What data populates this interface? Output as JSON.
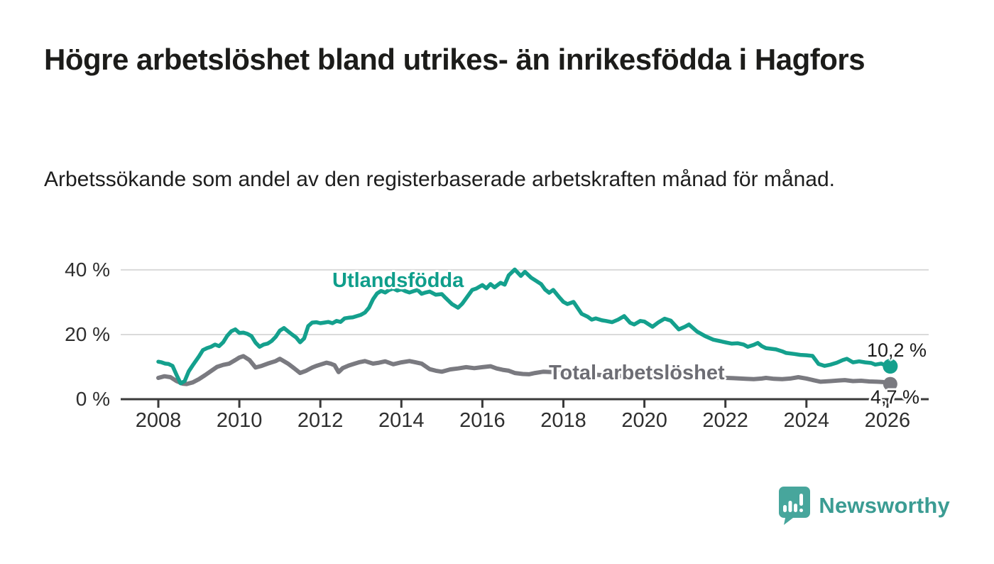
{
  "header": {
    "title": "Högre arbetslöshet bland utrikes- än inrikesfödda i Hagfors",
    "subtitle": "Arbetssökande som andel av den registerbaserade arbetskraften månad för månad."
  },
  "chart_data": {
    "type": "line",
    "title": "Högre arbetslöshet bland utrikes- än inrikesfödda i Hagfors",
    "xlabel": "",
    "ylabel": "",
    "unit": "%",
    "grid": "horizontal-only",
    "xlim": [
      2007.9,
      2027.0
    ],
    "ylim": [
      0,
      44
    ],
    "x_ticks": [
      "2008",
      "2010",
      "2012",
      "2014",
      "2016",
      "2018",
      "2020",
      "2022",
      "2024",
      "2026"
    ],
    "y_ticks": [
      {
        "value": 0,
        "label": "0 %"
      },
      {
        "value": 20,
        "label": "20 %"
      },
      {
        "value": 40,
        "label": "40 %"
      }
    ],
    "series": [
      {
        "name": "Total arbetslöshet",
        "color": "#7a7a80",
        "end_label": "4,7 %",
        "end_value": 4.7,
        "points": [
          [
            2008.0,
            6.6
          ],
          [
            2008.15,
            7.1
          ],
          [
            2008.3,
            6.8
          ],
          [
            2008.45,
            5.6
          ],
          [
            2008.6,
            4.8
          ],
          [
            2008.7,
            4.7
          ],
          [
            2008.85,
            5.2
          ],
          [
            2009.0,
            6.2
          ],
          [
            2009.15,
            7.4
          ],
          [
            2009.3,
            8.7
          ],
          [
            2009.45,
            10.0
          ],
          [
            2009.6,
            10.6
          ],
          [
            2009.75,
            11.0
          ],
          [
            2009.9,
            12.1
          ],
          [
            2010.0,
            12.9
          ],
          [
            2010.1,
            13.3
          ],
          [
            2010.25,
            12.1
          ],
          [
            2010.4,
            9.8
          ],
          [
            2010.55,
            10.3
          ],
          [
            2010.7,
            11.0
          ],
          [
            2010.9,
            11.8
          ],
          [
            2011.0,
            12.5
          ],
          [
            2011.2,
            11.0
          ],
          [
            2011.35,
            9.6
          ],
          [
            2011.5,
            8.1
          ],
          [
            2011.65,
            8.8
          ],
          [
            2011.8,
            9.8
          ],
          [
            2011.9,
            10.3
          ],
          [
            2012.0,
            10.7
          ],
          [
            2012.15,
            11.3
          ],
          [
            2012.25,
            11.0
          ],
          [
            2012.35,
            10.5
          ],
          [
            2012.45,
            8.4
          ],
          [
            2012.55,
            9.6
          ],
          [
            2012.7,
            10.4
          ],
          [
            2012.85,
            11.0
          ],
          [
            2012.95,
            11.4
          ],
          [
            2013.1,
            11.8
          ],
          [
            2013.3,
            11.0
          ],
          [
            2013.45,
            11.3
          ],
          [
            2013.6,
            11.7
          ],
          [
            2013.8,
            10.8
          ],
          [
            2014.0,
            11.4
          ],
          [
            2014.2,
            11.8
          ],
          [
            2014.35,
            11.4
          ],
          [
            2014.5,
            11.0
          ],
          [
            2014.7,
            9.3
          ],
          [
            2014.85,
            8.8
          ],
          [
            2015.0,
            8.5
          ],
          [
            2015.2,
            9.2
          ],
          [
            2015.4,
            9.5
          ],
          [
            2015.6,
            9.9
          ],
          [
            2015.8,
            9.6
          ],
          [
            2016.0,
            9.9
          ],
          [
            2016.2,
            10.2
          ],
          [
            2016.35,
            9.5
          ],
          [
            2016.5,
            9.1
          ],
          [
            2016.65,
            8.8
          ],
          [
            2016.8,
            8.1
          ],
          [
            2017.0,
            7.8
          ],
          [
            2017.15,
            7.7
          ],
          [
            2017.3,
            8.1
          ],
          [
            2017.5,
            8.5
          ],
          [
            2017.7,
            8.4
          ],
          [
            2018.0,
            8.1
          ],
          [
            2018.3,
            7.9
          ],
          [
            2018.6,
            7.7
          ],
          [
            2019.0,
            7.4
          ],
          [
            2019.4,
            7.2
          ],
          [
            2019.8,
            7.3
          ],
          [
            2020.2,
            7.6
          ],
          [
            2020.6,
            7.8
          ],
          [
            2021.0,
            7.3
          ],
          [
            2021.4,
            7.0
          ],
          [
            2021.8,
            6.7
          ],
          [
            2022.2,
            6.5
          ],
          [
            2022.5,
            6.3
          ],
          [
            2022.7,
            6.2
          ],
          [
            2022.9,
            6.4
          ],
          [
            2023.0,
            6.6
          ],
          [
            2023.2,
            6.3
          ],
          [
            2023.4,
            6.2
          ],
          [
            2023.6,
            6.4
          ],
          [
            2023.8,
            6.8
          ],
          [
            2024.0,
            6.4
          ],
          [
            2024.2,
            5.8
          ],
          [
            2024.35,
            5.4
          ],
          [
            2024.6,
            5.6
          ],
          [
            2024.8,
            5.8
          ],
          [
            2024.95,
            5.9
          ],
          [
            2025.15,
            5.6
          ],
          [
            2025.35,
            5.7
          ],
          [
            2025.55,
            5.5
          ],
          [
            2025.75,
            5.4
          ],
          [
            2025.9,
            5.3
          ],
          [
            2026.0,
            4.7
          ]
        ]
      },
      {
        "name": "Utlandsfödda",
        "color": "#14a08d",
        "end_label": "10,2 %",
        "end_value": 10.2,
        "points": [
          [
            2008.0,
            11.6
          ],
          [
            2008.08,
            11.4
          ],
          [
            2008.17,
            11.0
          ],
          [
            2008.25,
            10.9
          ],
          [
            2008.35,
            10.3
          ],
          [
            2008.45,
            7.5
          ],
          [
            2008.55,
            4.9
          ],
          [
            2008.65,
            5.6
          ],
          [
            2008.75,
            8.6
          ],
          [
            2008.85,
            10.5
          ],
          [
            2009.0,
            13.2
          ],
          [
            2009.1,
            15.2
          ],
          [
            2009.2,
            15.8
          ],
          [
            2009.3,
            16.2
          ],
          [
            2009.4,
            16.9
          ],
          [
            2009.5,
            16.4
          ],
          [
            2009.6,
            17.6
          ],
          [
            2009.7,
            19.6
          ],
          [
            2009.8,
            21.0
          ],
          [
            2009.9,
            21.6
          ],
          [
            2010.0,
            20.5
          ],
          [
            2010.1,
            20.6
          ],
          [
            2010.2,
            20.2
          ],
          [
            2010.3,
            19.5
          ],
          [
            2010.4,
            17.5
          ],
          [
            2010.5,
            16.2
          ],
          [
            2010.6,
            16.9
          ],
          [
            2010.7,
            17.2
          ],
          [
            2010.8,
            18.0
          ],
          [
            2010.9,
            19.3
          ],
          [
            2011.0,
            21.2
          ],
          [
            2011.1,
            22.0
          ],
          [
            2011.2,
            21.0
          ],
          [
            2011.3,
            20.0
          ],
          [
            2011.4,
            19.1
          ],
          [
            2011.5,
            17.6
          ],
          [
            2011.6,
            18.8
          ],
          [
            2011.7,
            22.6
          ],
          [
            2011.8,
            23.7
          ],
          [
            2011.9,
            23.8
          ],
          [
            2012.0,
            23.5
          ],
          [
            2012.1,
            23.7
          ],
          [
            2012.2,
            23.9
          ],
          [
            2012.3,
            23.5
          ],
          [
            2012.4,
            24.2
          ],
          [
            2012.5,
            23.9
          ],
          [
            2012.6,
            25.0
          ],
          [
            2012.7,
            25.2
          ],
          [
            2012.8,
            25.3
          ],
          [
            2012.9,
            25.7
          ],
          [
            2013.0,
            26.1
          ],
          [
            2013.1,
            26.8
          ],
          [
            2013.2,
            28.3
          ],
          [
            2013.3,
            30.9
          ],
          [
            2013.4,
            32.7
          ],
          [
            2013.5,
            33.5
          ],
          [
            2013.6,
            33.0
          ],
          [
            2013.7,
            33.8
          ],
          [
            2013.8,
            34.2
          ],
          [
            2013.9,
            33.6
          ],
          [
            2014.0,
            34.0
          ],
          [
            2014.1,
            33.4
          ],
          [
            2014.2,
            33.0
          ],
          [
            2014.3,
            33.4
          ],
          [
            2014.4,
            33.8
          ],
          [
            2014.5,
            32.6
          ],
          [
            2014.6,
            33.0
          ],
          [
            2014.7,
            33.3
          ],
          [
            2014.85,
            32.3
          ],
          [
            2015.0,
            32.5
          ],
          [
            2015.1,
            31.2
          ],
          [
            2015.25,
            29.4
          ],
          [
            2015.4,
            28.3
          ],
          [
            2015.5,
            29.5
          ],
          [
            2015.6,
            31.2
          ],
          [
            2015.75,
            33.8
          ],
          [
            2015.85,
            34.2
          ],
          [
            2016.0,
            35.3
          ],
          [
            2016.1,
            34.3
          ],
          [
            2016.2,
            35.6
          ],
          [
            2016.3,
            34.6
          ],
          [
            2016.45,
            36.0
          ],
          [
            2016.55,
            35.4
          ],
          [
            2016.65,
            38.3
          ],
          [
            2016.8,
            40.1
          ],
          [
            2016.95,
            38.1
          ],
          [
            2017.05,
            39.4
          ],
          [
            2017.2,
            37.6
          ],
          [
            2017.3,
            36.8
          ],
          [
            2017.45,
            35.6
          ],
          [
            2017.55,
            33.9
          ],
          [
            2017.65,
            32.9
          ],
          [
            2017.75,
            33.8
          ],
          [
            2017.9,
            31.5
          ],
          [
            2018.0,
            30.1
          ],
          [
            2018.1,
            29.4
          ],
          [
            2018.25,
            30.1
          ],
          [
            2018.45,
            26.4
          ],
          [
            2018.6,
            25.5
          ],
          [
            2018.7,
            24.6
          ],
          [
            2018.8,
            25.0
          ],
          [
            2018.95,
            24.4
          ],
          [
            2019.05,
            24.2
          ],
          [
            2019.2,
            23.8
          ],
          [
            2019.35,
            24.6
          ],
          [
            2019.5,
            25.7
          ],
          [
            2019.65,
            23.6
          ],
          [
            2019.75,
            23.1
          ],
          [
            2019.9,
            24.2
          ],
          [
            2020.0,
            24.0
          ],
          [
            2020.2,
            22.4
          ],
          [
            2020.35,
            23.8
          ],
          [
            2020.5,
            24.9
          ],
          [
            2020.65,
            24.3
          ],
          [
            2020.85,
            21.6
          ],
          [
            2021.0,
            22.4
          ],
          [
            2021.1,
            23.1
          ],
          [
            2021.3,
            20.9
          ],
          [
            2021.5,
            19.5
          ],
          [
            2021.7,
            18.4
          ],
          [
            2021.85,
            18.0
          ],
          [
            2022.0,
            17.6
          ],
          [
            2022.15,
            17.2
          ],
          [
            2022.3,
            17.3
          ],
          [
            2022.45,
            16.9
          ],
          [
            2022.55,
            16.2
          ],
          [
            2022.7,
            16.8
          ],
          [
            2022.8,
            17.4
          ],
          [
            2022.9,
            16.4
          ],
          [
            2023.0,
            15.8
          ],
          [
            2023.25,
            15.4
          ],
          [
            2023.4,
            14.8
          ],
          [
            2023.5,
            14.3
          ],
          [
            2023.7,
            14.0
          ],
          [
            2023.85,
            13.7
          ],
          [
            2024.0,
            13.6
          ],
          [
            2024.15,
            13.4
          ],
          [
            2024.3,
            10.9
          ],
          [
            2024.45,
            10.3
          ],
          [
            2024.6,
            10.7
          ],
          [
            2024.75,
            11.3
          ],
          [
            2024.9,
            12.1
          ],
          [
            2025.0,
            12.5
          ],
          [
            2025.15,
            11.4
          ],
          [
            2025.3,
            11.7
          ],
          [
            2025.45,
            11.4
          ],
          [
            2025.6,
            11.2
          ],
          [
            2025.7,
            10.7
          ],
          [
            2025.85,
            11.0
          ],
          [
            2026.0,
            10.2
          ]
        ]
      }
    ],
    "annotations": {
      "series_label_utlandsfodda": "Utlandsfödda",
      "series_label_total": "Total arbetslöshet",
      "end_label_utlandsfodda": "10,2 %",
      "end_label_total": "4,7 %"
    },
    "colors": {
      "teal_line": "#14a08d",
      "teal_label": "#0f9e8b",
      "gray_line": "#7a7a80",
      "gray_label": "#6d6d74",
      "axis": "#3a3a3a",
      "gridline": "#dadada",
      "tick_text": "#2f2f2f"
    }
  },
  "branding": {
    "name": "Newsworthy",
    "logo_icon": "speech-bubble-bar-chart",
    "bubble_color": "#47a69c",
    "text_color": "#3b9c93"
  }
}
